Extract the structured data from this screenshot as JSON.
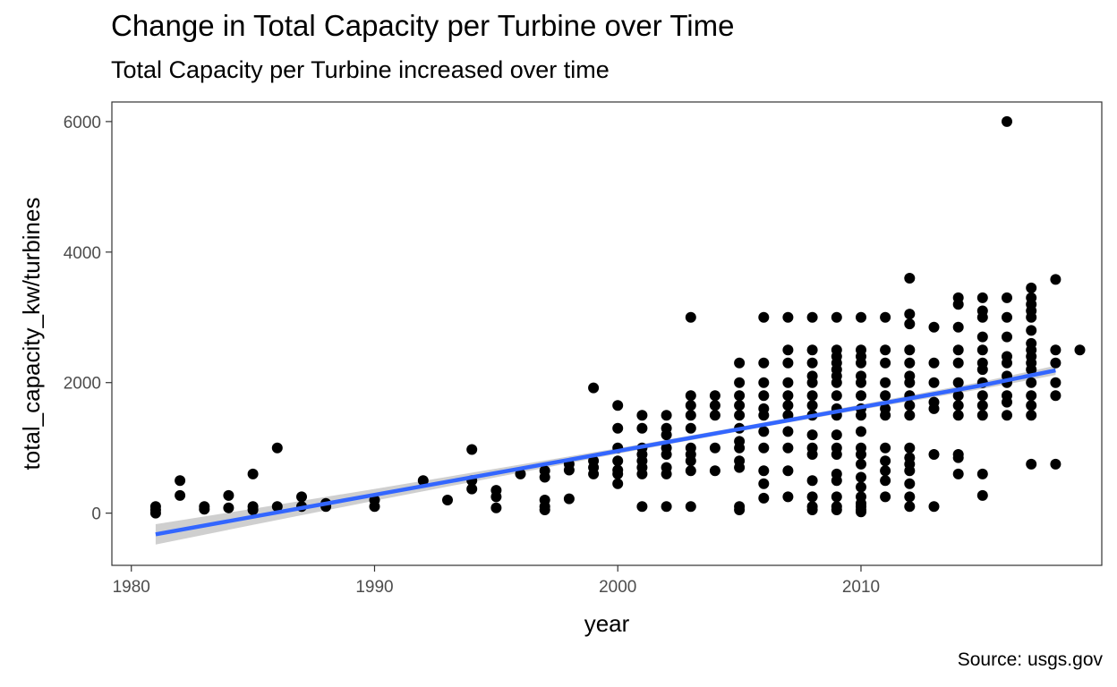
{
  "title": "Change in Total Capacity per Turbine over Time",
  "subtitle": "Total Capacity per Turbine increased over time",
  "caption": "Source: usgs.gov",
  "colors": {
    "points": "#000000",
    "trend_line": "#3366FF",
    "confidence_band": "#bfbfbf",
    "panel_border": "#333333",
    "tick_text": "#4d4d4d"
  },
  "chart_data": {
    "type": "scatter",
    "title": "Change in Total Capacity per Turbine over Time",
    "subtitle": "Total Capacity per Turbine increased over time",
    "xlabel": "year",
    "ylabel": "total_capacity_kw/turbines",
    "xlim": [
      1979.2,
      2019.9
    ],
    "ylim": [
      -800,
      6300
    ],
    "x_ticks": [
      1980,
      1990,
      2000,
      2010
    ],
    "y_ticks": [
      0,
      2000,
      4000,
      6000
    ],
    "grid": false,
    "points": [
      [
        1981,
        0
      ],
      [
        1981,
        50
      ],
      [
        1981,
        100
      ],
      [
        1982,
        270
      ],
      [
        1982,
        500
      ],
      [
        1983,
        60
      ],
      [
        1983,
        100
      ],
      [
        1984,
        80
      ],
      [
        1984,
        270
      ],
      [
        1985,
        50
      ],
      [
        1985,
        100
      ],
      [
        1985,
        600
      ],
      [
        1986,
        100
      ],
      [
        1986,
        1000
      ],
      [
        1987,
        100
      ],
      [
        1987,
        250
      ],
      [
        1988,
        100
      ],
      [
        1988,
        150
      ],
      [
        1990,
        100
      ],
      [
        1990,
        200
      ],
      [
        1992,
        500
      ],
      [
        1993,
        200
      ],
      [
        1994,
        370
      ],
      [
        1994,
        500
      ],
      [
        1994,
        975
      ],
      [
        1995,
        80
      ],
      [
        1995,
        250
      ],
      [
        1995,
        350
      ],
      [
        1996,
        600
      ],
      [
        1997,
        50
      ],
      [
        1997,
        100
      ],
      [
        1997,
        200
      ],
      [
        1997,
        550
      ],
      [
        1997,
        650
      ],
      [
        1998,
        220
      ],
      [
        1998,
        660
      ],
      [
        1998,
        750
      ],
      [
        1999,
        600
      ],
      [
        1999,
        700
      ],
      [
        1999,
        800
      ],
      [
        1999,
        1920
      ],
      [
        2000,
        450
      ],
      [
        2000,
        600
      ],
      [
        2000,
        660
      ],
      [
        2000,
        800
      ],
      [
        2000,
        1000
      ],
      [
        2000,
        1300
      ],
      [
        2000,
        1650
      ],
      [
        2001,
        100
      ],
      [
        2001,
        600
      ],
      [
        2001,
        700
      ],
      [
        2001,
        800
      ],
      [
        2001,
        900
      ],
      [
        2001,
        1000
      ],
      [
        2001,
        1300
      ],
      [
        2001,
        1500
      ],
      [
        2002,
        100
      ],
      [
        2002,
        600
      ],
      [
        2002,
        700
      ],
      [
        2002,
        900
      ],
      [
        2002,
        1000
      ],
      [
        2002,
        1200
      ],
      [
        2002,
        1300
      ],
      [
        2002,
        1500
      ],
      [
        2003,
        100
      ],
      [
        2003,
        650
      ],
      [
        2003,
        800
      ],
      [
        2003,
        900
      ],
      [
        2003,
        1000
      ],
      [
        2003,
        1300
      ],
      [
        2003,
        1500
      ],
      [
        2003,
        1650
      ],
      [
        2003,
        1800
      ],
      [
        2003,
        3000
      ],
      [
        2004,
        650
      ],
      [
        2004,
        1000
      ],
      [
        2004,
        1500
      ],
      [
        2004,
        1650
      ],
      [
        2004,
        1800
      ],
      [
        2005,
        50
      ],
      [
        2005,
        100
      ],
      [
        2005,
        700
      ],
      [
        2005,
        800
      ],
      [
        2005,
        1000
      ],
      [
        2005,
        1100
      ],
      [
        2005,
        1300
      ],
      [
        2005,
        1500
      ],
      [
        2005,
        1650
      ],
      [
        2005,
        1800
      ],
      [
        2005,
        2000
      ],
      [
        2005,
        2300
      ],
      [
        2006,
        230
      ],
      [
        2006,
        450
      ],
      [
        2006,
        650
      ],
      [
        2006,
        1000
      ],
      [
        2006,
        1250
      ],
      [
        2006,
        1500
      ],
      [
        2006,
        1600
      ],
      [
        2006,
        1800
      ],
      [
        2006,
        2000
      ],
      [
        2006,
        2300
      ],
      [
        2006,
        3000
      ],
      [
        2007,
        250
      ],
      [
        2007,
        650
      ],
      [
        2007,
        1000
      ],
      [
        2007,
        1250
      ],
      [
        2007,
        1500
      ],
      [
        2007,
        1650
      ],
      [
        2007,
        1800
      ],
      [
        2007,
        2000
      ],
      [
        2007,
        2300
      ],
      [
        2007,
        2500
      ],
      [
        2007,
        3000
      ],
      [
        2008,
        50
      ],
      [
        2008,
        100
      ],
      [
        2008,
        250
      ],
      [
        2008,
        500
      ],
      [
        2008,
        900
      ],
      [
        2008,
        1000
      ],
      [
        2008,
        1200
      ],
      [
        2008,
        1500
      ],
      [
        2008,
        1650
      ],
      [
        2008,
        1800
      ],
      [
        2008,
        2000
      ],
      [
        2008,
        2100
      ],
      [
        2008,
        2300
      ],
      [
        2008,
        2500
      ],
      [
        2008,
        3000
      ],
      [
        2009,
        50
      ],
      [
        2009,
        100
      ],
      [
        2009,
        250
      ],
      [
        2009,
        500
      ],
      [
        2009,
        600
      ],
      [
        2009,
        900
      ],
      [
        2009,
        1000
      ],
      [
        2009,
        1200
      ],
      [
        2009,
        1500
      ],
      [
        2009,
        1600
      ],
      [
        2009,
        1800
      ],
      [
        2009,
        2000
      ],
      [
        2009,
        2100
      ],
      [
        2009,
        2200
      ],
      [
        2009,
        2300
      ],
      [
        2009,
        2400
      ],
      [
        2009,
        2500
      ],
      [
        2009,
        3000
      ],
      [
        2010,
        20
      ],
      [
        2010,
        50
      ],
      [
        2010,
        100
      ],
      [
        2010,
        150
      ],
      [
        2010,
        250
      ],
      [
        2010,
        400
      ],
      [
        2010,
        550
      ],
      [
        2010,
        750
      ],
      [
        2010,
        900
      ],
      [
        2010,
        1000
      ],
      [
        2010,
        1250
      ],
      [
        2010,
        1500
      ],
      [
        2010,
        1600
      ],
      [
        2010,
        1800
      ],
      [
        2010,
        2000
      ],
      [
        2010,
        2100
      ],
      [
        2010,
        2300
      ],
      [
        2010,
        2400
      ],
      [
        2010,
        2500
      ],
      [
        2010,
        3000
      ],
      [
        2011,
        250
      ],
      [
        2011,
        500
      ],
      [
        2011,
        650
      ],
      [
        2011,
        800
      ],
      [
        2011,
        1000
      ],
      [
        2011,
        1500
      ],
      [
        2011,
        1600
      ],
      [
        2011,
        1800
      ],
      [
        2011,
        2000
      ],
      [
        2011,
        2300
      ],
      [
        2011,
        2500
      ],
      [
        2011,
        3000
      ],
      [
        2012,
        100
      ],
      [
        2012,
        250
      ],
      [
        2012,
        450
      ],
      [
        2012,
        650
      ],
      [
        2012,
        750
      ],
      [
        2012,
        850
      ],
      [
        2012,
        1000
      ],
      [
        2012,
        1500
      ],
      [
        2012,
        1650
      ],
      [
        2012,
        1800
      ],
      [
        2012,
        2000
      ],
      [
        2012,
        2100
      ],
      [
        2012,
        2300
      ],
      [
        2012,
        2500
      ],
      [
        2012,
        2900
      ],
      [
        2012,
        3050
      ],
      [
        2012,
        3600
      ],
      [
        2013,
        100
      ],
      [
        2013,
        900
      ],
      [
        2013,
        1600
      ],
      [
        2013,
        1700
      ],
      [
        2013,
        2000
      ],
      [
        2013,
        2300
      ],
      [
        2013,
        2850
      ],
      [
        2014,
        600
      ],
      [
        2014,
        850
      ],
      [
        2014,
        900
      ],
      [
        2014,
        1500
      ],
      [
        2014,
        1650
      ],
      [
        2014,
        1800
      ],
      [
        2014,
        2000
      ],
      [
        2014,
        2300
      ],
      [
        2014,
        2500
      ],
      [
        2014,
        2850
      ],
      [
        2014,
        3200
      ],
      [
        2014,
        3300
      ],
      [
        2015,
        270
      ],
      [
        2015,
        600
      ],
      [
        2015,
        1500
      ],
      [
        2015,
        1650
      ],
      [
        2015,
        1800
      ],
      [
        2015,
        2000
      ],
      [
        2015,
        2200
      ],
      [
        2015,
        2300
      ],
      [
        2015,
        2500
      ],
      [
        2015,
        2700
      ],
      [
        2015,
        3000
      ],
      [
        2015,
        3100
      ],
      [
        2015,
        3300
      ],
      [
        2016,
        1500
      ],
      [
        2016,
        1700
      ],
      [
        2016,
        1800
      ],
      [
        2016,
        2000
      ],
      [
        2016,
        2100
      ],
      [
        2016,
        2300
      ],
      [
        2016,
        2400
      ],
      [
        2016,
        2700
      ],
      [
        2016,
        3000
      ],
      [
        2016,
        3300
      ],
      [
        2016,
        6000
      ],
      [
        2017,
        750
      ],
      [
        2017,
        1500
      ],
      [
        2017,
        1650
      ],
      [
        2017,
        1800
      ],
      [
        2017,
        2000
      ],
      [
        2017,
        2200
      ],
      [
        2017,
        2300
      ],
      [
        2017,
        2400
      ],
      [
        2017,
        2500
      ],
      [
        2017,
        2600
      ],
      [
        2017,
        2800
      ],
      [
        2017,
        3000
      ],
      [
        2017,
        3100
      ],
      [
        2017,
        3200
      ],
      [
        2017,
        3300
      ],
      [
        2017,
        3450
      ],
      [
        2018,
        750
      ],
      [
        2018,
        1800
      ],
      [
        2018,
        2000
      ],
      [
        2018,
        2300
      ],
      [
        2018,
        2500
      ],
      [
        2018,
        3580
      ],
      [
        2019,
        2500
      ]
    ],
    "trend": {
      "x": [
        1981,
        1985,
        1990,
        1995,
        2000,
        2005,
        2010,
        2015,
        2018
      ],
      "y": [
        -325,
        -56,
        280,
        616,
        952,
        1288,
        1624,
        1960,
        2187
      ],
      "lower": [
        -480,
        -180,
        190,
        550,
        910,
        1255,
        1585,
        1905,
        2115
      ],
      "upper": [
        -170,
        68,
        370,
        682,
        994,
        1321,
        1663,
        2015,
        2259
      ]
    }
  }
}
